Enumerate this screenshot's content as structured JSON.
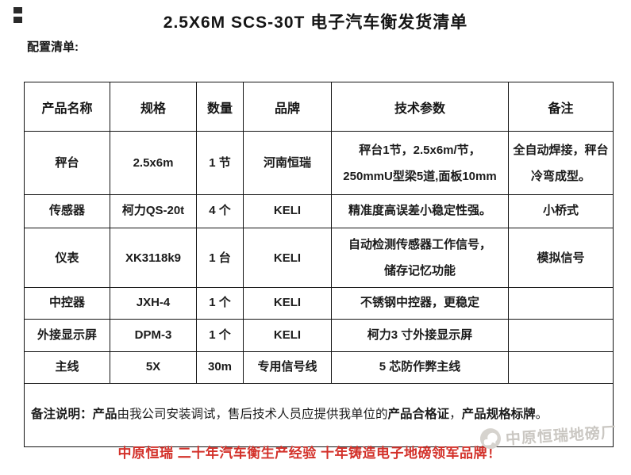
{
  "page": {
    "title": "2.5X6M SCS-30T 电子汽车衡发货清单",
    "subtitle": "配置清单:"
  },
  "table": {
    "headers": [
      "产品名称",
      "规格",
      "数量",
      "品牌",
      "技术参数",
      "备注"
    ],
    "rows": [
      {
        "name": "秤台",
        "spec": "2.5x6m",
        "qty": "1 节",
        "brand": "河南恒瑞",
        "params": "秤台1节，2.5x6m/节，\n250mmU型梁5道,面板10mm",
        "remark": "全自动焊接，秤台冷弯成型。"
      },
      {
        "name": "传感器",
        "spec": "柯力QS-20t",
        "qty": "4 个",
        "brand": "KELI",
        "params": "精准度高误差小稳定性强。",
        "remark": "小桥式"
      },
      {
        "name": "仪表",
        "spec": "XK3118k9",
        "qty": "1 台",
        "brand": "KELI",
        "params": "自动检测传感器工作信号，\n储存记忆功能",
        "remark": "模拟信号"
      },
      {
        "name": "中控器",
        "spec": "JXH-4",
        "qty": "1 个",
        "brand": "KELI",
        "params": "不锈钢中控器，更稳定",
        "remark": ""
      },
      {
        "name": "外接显示屏",
        "spec": "DPM-3",
        "qty": "1 个",
        "brand": "KELI",
        "params": "柯力3 寸外接显示屏",
        "remark": ""
      },
      {
        "name": "主线",
        "spec": "5X",
        "qty": "30m",
        "brand": "专用信号线",
        "params": "5 芯防作弊主线",
        "remark": ""
      }
    ],
    "note_segments": [
      {
        "text": "备注说明：",
        "bold": true
      },
      {
        "text": "产品",
        "bold": true
      },
      {
        "text": "由我公司安装调试，售后技术人员应提供我单位的",
        "bold": false
      },
      {
        "text": "产品合格证",
        "bold": true
      },
      {
        "text": "，",
        "bold": false
      },
      {
        "text": "产品规格标牌",
        "bold": true
      },
      {
        "text": "。",
        "bold": false
      }
    ]
  },
  "footer": {
    "slogan": "中原恒瑞 二十年汽车衡生产经验 十年铸造电子地磅领军品牌！",
    "slogan_color": "#d3312a",
    "watermark_text": "中原恒瑞地磅厂",
    "watermark_color": "#cac7c2",
    "watermark_icon": "kuaishou-camera-icon"
  }
}
